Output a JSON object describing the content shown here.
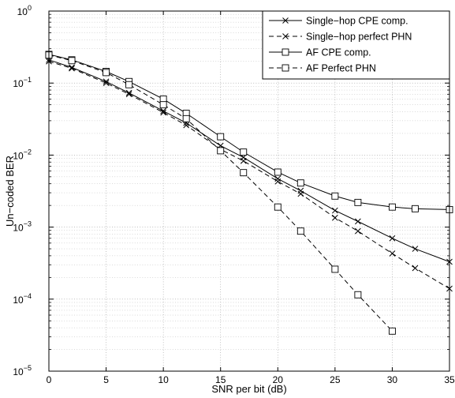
{
  "chart_data": {
    "type": "line",
    "xlabel": "SNR per bit (dB)",
    "ylabel": "Un−coded BER",
    "xlim": [
      0,
      35
    ],
    "ylim": [
      1e-05,
      1
    ],
    "yscale": "log",
    "grid": true,
    "legend_position": "top-right",
    "x_ticks": [
      0,
      5,
      10,
      15,
      20,
      25,
      30,
      35
    ],
    "y_ticks": [
      {
        "value": 1e-05,
        "base": "10",
        "exp": "−5"
      },
      {
        "value": 0.0001,
        "base": "10",
        "exp": "−4"
      },
      {
        "value": 0.001,
        "base": "10",
        "exp": "−3"
      },
      {
        "value": 0.01,
        "base": "10",
        "exp": "−2"
      },
      {
        "value": 0.1,
        "base": "10",
        "exp": "−1"
      },
      {
        "value": 1,
        "base": "10",
        "exp": "0"
      }
    ],
    "series": [
      {
        "name": "Single−hop CPE comp.",
        "marker": "x",
        "line_style": "solid",
        "x": [
          0,
          2,
          5,
          7,
          10,
          12,
          15,
          17,
          20,
          22,
          25,
          27,
          30,
          32,
          35
        ],
        "y": [
          0.21,
          0.165,
          0.105,
          0.073,
          0.041,
          0.028,
          0.0135,
          0.0093,
          0.0047,
          0.0032,
          0.0017,
          0.0012,
          0.0007,
          0.0005,
          0.00033
        ]
      },
      {
        "name": "Single−hop perfect PHN",
        "marker": "x",
        "line_style": "dashed",
        "x": [
          0,
          2,
          5,
          7,
          10,
          12,
          15,
          17,
          20,
          22,
          25,
          27,
          30,
          32,
          35
        ],
        "y": [
          0.2,
          0.16,
          0.1,
          0.07,
          0.039,
          0.026,
          0.012,
          0.0083,
          0.0043,
          0.0029,
          0.00135,
          0.00088,
          0.00043,
          0.00027,
          0.00014
        ]
      },
      {
        "name": "AF CPE comp.",
        "marker": "square",
        "line_style": "solid",
        "x": [
          0,
          2,
          5,
          7,
          10,
          12,
          15,
          17,
          20,
          22,
          25,
          27,
          30,
          32,
          35
        ],
        "y": [
          0.25,
          0.21,
          0.145,
          0.105,
          0.06,
          0.038,
          0.018,
          0.011,
          0.0058,
          0.0041,
          0.0027,
          0.0022,
          0.0019,
          0.0018,
          0.00175
        ]
      },
      {
        "name": "AF Perfect PHN",
        "marker": "square",
        "line_style": "dashed",
        "x": [
          0,
          2,
          5,
          7,
          10,
          12,
          15,
          17,
          20,
          22,
          25,
          27,
          30
        ],
        "y": [
          0.245,
          0.205,
          0.14,
          0.095,
          0.05,
          0.032,
          0.0115,
          0.0057,
          0.0019,
          0.00088,
          0.00026,
          0.000115,
          3.6e-05
        ]
      }
    ]
  }
}
